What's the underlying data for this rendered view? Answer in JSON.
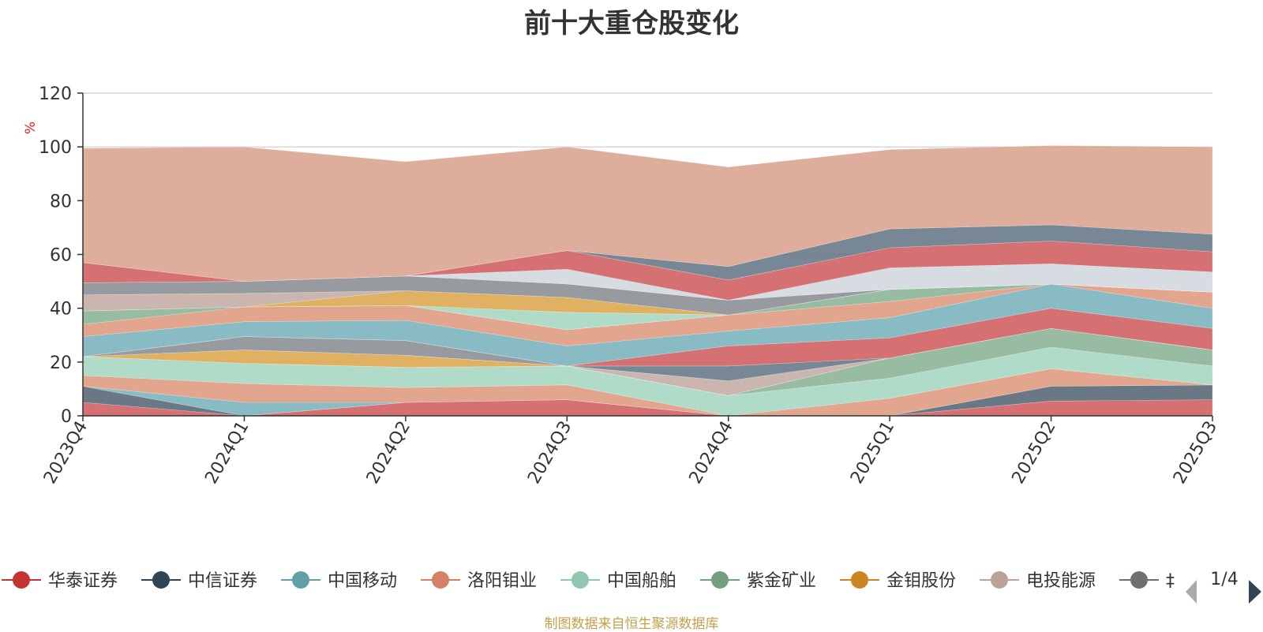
{
  "chart_data": {
    "type": "area",
    "title": "前十大重仓股变化",
    "ylabel": "%",
    "xlabel": "",
    "ylim": [
      0,
      120
    ],
    "yticks": [
      0,
      20,
      40,
      60,
      80,
      100,
      120
    ],
    "categories": [
      "2023Q4",
      "2024Q1",
      "2024Q2",
      "2024Q3",
      "2024Q4",
      "2025Q1",
      "2025Q2",
      "2025Q3"
    ],
    "stacked": true,
    "grid": true,
    "legend_position": "bottom",
    "legend_page": "1/4",
    "series": [
      {
        "name": "华泰证券",
        "color": "#d16567",
        "values": [
          5.0,
          0.0,
          5.0,
          6.0,
          0.0,
          0.0,
          5.5,
          6.0
        ]
      },
      {
        "name": "中信证券",
        "color": "#5d6b7a",
        "values": [
          6.0,
          0.0,
          0.0,
          0.0,
          0.0,
          0.0,
          5.5,
          5.5
        ]
      },
      {
        "name": "中国移动",
        "color": "#7fb5bf",
        "values": [
          0.0,
          5.0,
          0.0,
          0.0,
          0.0,
          0.0,
          0.0,
          0.0
        ]
      },
      {
        "name": "洛阳钼业",
        "color": "#df9d84",
        "values": [
          4.0,
          7.0,
          5.5,
          5.5,
          0.0,
          6.5,
          6.5,
          0.0
        ]
      },
      {
        "name": "中国船舶",
        "color": "#a9d8c3",
        "values": [
          7.0,
          7.5,
          7.5,
          7.0,
          7.5,
          7.5,
          8.0,
          7.0
        ]
      },
      {
        "name": "紫金矿业",
        "color": "#8fb69a",
        "values": [
          0.0,
          0.0,
          0.0,
          0.0,
          0.0,
          7.5,
          7.0,
          6.0
        ]
      },
      {
        "name": "金钼股份",
        "color": "#ddaa55",
        "values": [
          0.0,
          5.0,
          4.5,
          0.0,
          0.0,
          0.0,
          0.0,
          0.0
        ]
      },
      {
        "name": "电投能源",
        "color": "#c6b0a8",
        "values": [
          0.0,
          0.0,
          0.0,
          0.0,
          5.5,
          0.0,
          0.0,
          0.0
        ]
      },
      {
        "name": "",
        "color": "#8e9197",
        "values": [
          0.0,
          5.0,
          5.5,
          0.0,
          0.0,
          0.0,
          0.0,
          0.0
        ]
      },
      {
        "name": "",
        "color": "#6d7d8c",
        "values": [
          0.0,
          0.0,
          0.0,
          0.0,
          5.5,
          0.0,
          0.0,
          0.0
        ]
      },
      {
        "name": "",
        "color": "#d16567",
        "values": [
          0.0,
          0.0,
          0.0,
          0.0,
          7.5,
          7.5,
          7.5,
          8.0
        ]
      },
      {
        "name": "",
        "color": "#7fb5bf",
        "values": [
          7.5,
          5.5,
          7.5,
          7.5,
          5.5,
          7.5,
          9.0,
          7.5
        ]
      },
      {
        "name": "",
        "color": "#df9d84",
        "values": [
          4.5,
          5.5,
          5.5,
          6.0,
          6.0,
          6.0,
          0.0,
          6.0
        ]
      },
      {
        "name": "",
        "color": "#8fb69a",
        "values": [
          5.0,
          0.0,
          0.0,
          0.0,
          0.0,
          4.5,
          0.0,
          0.0
        ]
      },
      {
        "name": "",
        "color": "#a9d8c3",
        "values": [
          0.0,
          0.0,
          0.0,
          6.5,
          0.0,
          0.0,
          0.0,
          0.0
        ]
      },
      {
        "name": "",
        "color": "#ddaa55",
        "values": [
          0.0,
          0.0,
          5.5,
          5.5,
          0.0,
          0.0,
          0.0,
          0.0
        ]
      },
      {
        "name": "",
        "color": "#c6b0a8",
        "values": [
          6.0,
          5.0,
          0.0,
          0.0,
          0.0,
          0.0,
          0.0,
          0.0
        ]
      },
      {
        "name": "",
        "color": "#8e9197",
        "values": [
          4.5,
          4.5,
          5.5,
          5.0,
          5.5,
          0.0,
          0.0,
          0.0
        ]
      },
      {
        "name": "",
        "color": "#d4d9e1",
        "values": [
          0.0,
          0.0,
          0.0,
          5.5,
          0.0,
          8.0,
          7.5,
          7.5
        ]
      },
      {
        "name": "",
        "color": "#d16567",
        "values": [
          7.5,
          0.0,
          0.0,
          7.0,
          7.5,
          7.5,
          8.5,
          7.5
        ]
      },
      {
        "name": "",
        "color": "#6d7d8c",
        "values": [
          0.0,
          0.0,
          0.0,
          0.0,
          5.0,
          7.0,
          6.0,
          6.5
        ]
      },
      {
        "name": "",
        "color": "#dca692",
        "values": [
          42.5,
          50.0,
          42.5,
          38.5,
          37.0,
          29.5,
          29.5,
          32.5
        ]
      }
    ],
    "legend": [
      {
        "label": "华泰证券",
        "color": "#c23531"
      },
      {
        "label": "中信证券",
        "color": "#2f4554"
      },
      {
        "label": "中国移动",
        "color": "#61a0a8"
      },
      {
        "label": "洛阳钼业",
        "color": "#d48265"
      },
      {
        "label": "中国船舶",
        "color": "#91c7ae"
      },
      {
        "label": "紫金矿业",
        "color": "#749f83"
      },
      {
        "label": "金钼股份",
        "color": "#ca8622"
      },
      {
        "label": "电投能源",
        "color": "#bda29a"
      },
      {
        "label": "‡",
        "color": "#6e7074"
      }
    ]
  },
  "footer": "制图数据来自恒生聚源数据库"
}
